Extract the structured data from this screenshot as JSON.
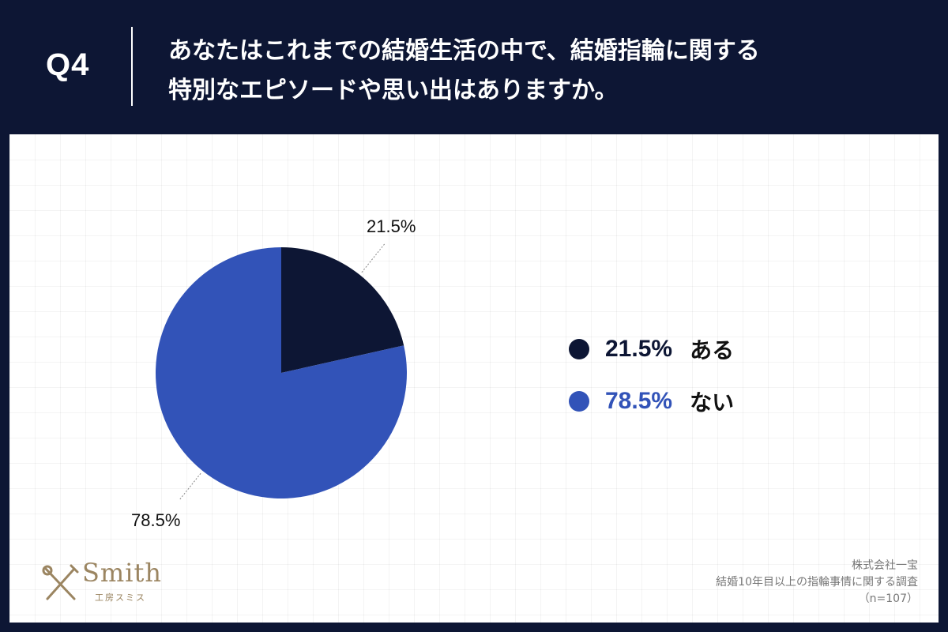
{
  "header": {
    "question_number": "Q4",
    "title_line1": "あなたはこれまでの結婚生活の中で、結婚指輪に関する",
    "title_line2": "特別なエピソードや思い出はありますか。"
  },
  "chart_data": {
    "type": "pie",
    "categories": [
      "ある",
      "ない"
    ],
    "values": [
      21.5,
      78.5
    ],
    "value_labels": [
      "21.5%",
      "78.5%"
    ],
    "colors": [
      "#0d1634",
      "#3253b8"
    ],
    "start_angle": "12 o'clock",
    "direction": "clockwise",
    "legend_position": "right"
  },
  "legend": {
    "items": [
      {
        "value": "21.5%",
        "label": "ある",
        "color": "#0d1634"
      },
      {
        "value": "78.5%",
        "label": "ない",
        "color": "#3253b8"
      }
    ]
  },
  "footer": {
    "logo_word": "Smith",
    "logo_sub": "工房スミス",
    "company": "株式会社一宝",
    "survey": "結婚10年目以上の指輪事情に関する調査",
    "sample": "（n=107）"
  },
  "colors": {
    "header_bg": "#0d1634",
    "panel_bg": "#ffffff",
    "accent_gold": "#9b8561"
  }
}
